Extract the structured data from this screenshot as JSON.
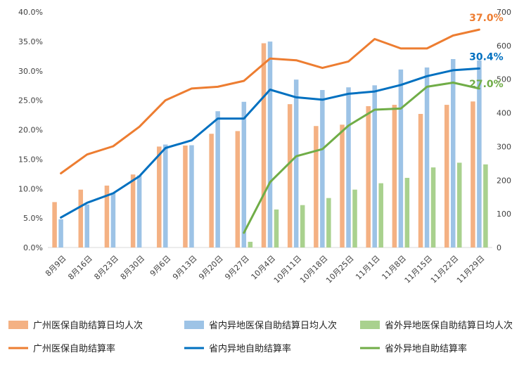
{
  "chart_data": {
    "type": "bar",
    "categories": [
      "8月9日",
      "8月16日",
      "8月23日",
      "8月30日",
      "9月6日",
      "9月13日",
      "9月20日",
      "9月27日",
      "10月4日",
      "10月11日",
      "10月18日",
      "10月25日",
      "11月1日",
      "11月8日",
      "11月15日",
      "11月22日",
      "11月29日"
    ],
    "y_left": {
      "min": 0,
      "max": 0.4,
      "step": 0.05,
      "tick_labels": [
        "0.0%",
        "5.0%",
        "10.0%",
        "15.0%",
        "20.0%",
        "25.0%",
        "30.0%",
        "35.0%",
        "40.0%"
      ]
    },
    "y_right": {
      "min": 0,
      "max": 700,
      "step": 100,
      "tick_labels": [
        "0",
        "100",
        "200",
        "300",
        "400",
        "500",
        "600",
        "700"
      ]
    },
    "bar_series": [
      {
        "name": "广州医保自助结算日均人次",
        "color": "#F4B183",
        "axis": "right",
        "values": [
          135,
          172,
          184,
          217,
          300,
          303,
          338,
          346,
          607,
          426,
          361,
          365,
          420,
          424,
          397,
          424,
          434
        ]
      },
      {
        "name": "省内异地医保自助结算日均人次",
        "color": "#9DC3E6",
        "axis": "right",
        "values": [
          84,
          128,
          162,
          214,
          306,
          304,
          405,
          433,
          612,
          499,
          468,
          476,
          482,
          529,
          535,
          560,
          556
        ]
      },
      {
        "name": "省外异地医保自助结算日均人次",
        "color": "#A9D18E",
        "axis": "right",
        "values": [
          null,
          null,
          null,
          null,
          null,
          null,
          null,
          17,
          113,
          126,
          147,
          172,
          191,
          207,
          238,
          252,
          247
        ]
      }
    ],
    "line_series": [
      {
        "name": "广州医保自助结算率",
        "color": "#ED7D31",
        "axis": "left",
        "values": [
          0.126,
          0.158,
          0.172,
          0.205,
          0.25,
          0.27,
          0.273,
          0.283,
          0.321,
          0.318,
          0.305,
          0.316,
          0.354,
          0.338,
          0.338,
          0.36,
          0.37
        ]
      },
      {
        "name": "省内异地自助结算率",
        "color": "#0070C0",
        "axis": "left",
        "values": [
          0.051,
          0.076,
          0.092,
          0.121,
          0.169,
          0.182,
          0.219,
          0.219,
          0.268,
          0.255,
          0.251,
          0.261,
          0.265,
          0.276,
          0.291,
          0.301,
          0.304
        ]
      },
      {
        "name": "省外异地自助结算率",
        "color": "#70AD47",
        "axis": "left",
        "values": [
          null,
          null,
          null,
          null,
          null,
          null,
          null,
          0.025,
          0.111,
          0.155,
          0.167,
          0.207,
          0.234,
          0.236,
          0.273,
          0.28,
          0.27
        ]
      }
    ],
    "end_labels": [
      {
        "text": "37.0%",
        "color": "#ED7D31"
      },
      {
        "text": "30.4%",
        "color": "#0070C0"
      },
      {
        "text": "27.0%",
        "color": "#70AD47"
      }
    ],
    "grid": false,
    "legend_position": "bottom"
  }
}
